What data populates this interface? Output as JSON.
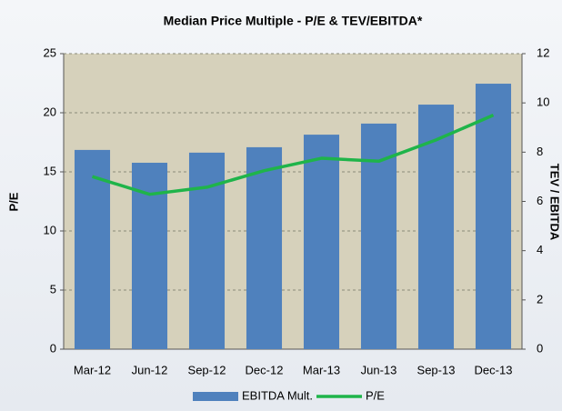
{
  "chart_data": {
    "type": "bar_line",
    "title": "Median Price Multiple - P/E & TEV/EBITDA*",
    "y_label": "P/E",
    "y2_label": "TEV / EBITDA",
    "categories": [
      "Mar-12",
      "Jun-12",
      "Sep-12",
      "Dec-12",
      "Mar-13",
      "Jun-13",
      "Sep-13",
      "Dec-13"
    ],
    "series": [
      {
        "name": "EBITDA Mult.",
        "type": "bar",
        "axis": "y2",
        "color": "#4f81bd",
        "values": [
          8.09,
          7.57,
          7.98,
          8.2,
          8.71,
          9.16,
          9.93,
          10.78
        ]
      },
      {
        "name": "P/E",
        "type": "line",
        "axis": "y",
        "color": "#1fb44a",
        "values": [
          14.6,
          13.1,
          13.7,
          15.1,
          16.15,
          15.9,
          17.7,
          19.8
        ]
      }
    ],
    "ylim": [
      0,
      25
    ],
    "yticks": [
      0,
      5,
      10,
      15,
      20,
      25
    ],
    "y2lim": [
      0,
      12
    ],
    "y2ticks": [
      0,
      2,
      4,
      6,
      8,
      10,
      12
    ],
    "grid": true,
    "legend": "bottom"
  }
}
